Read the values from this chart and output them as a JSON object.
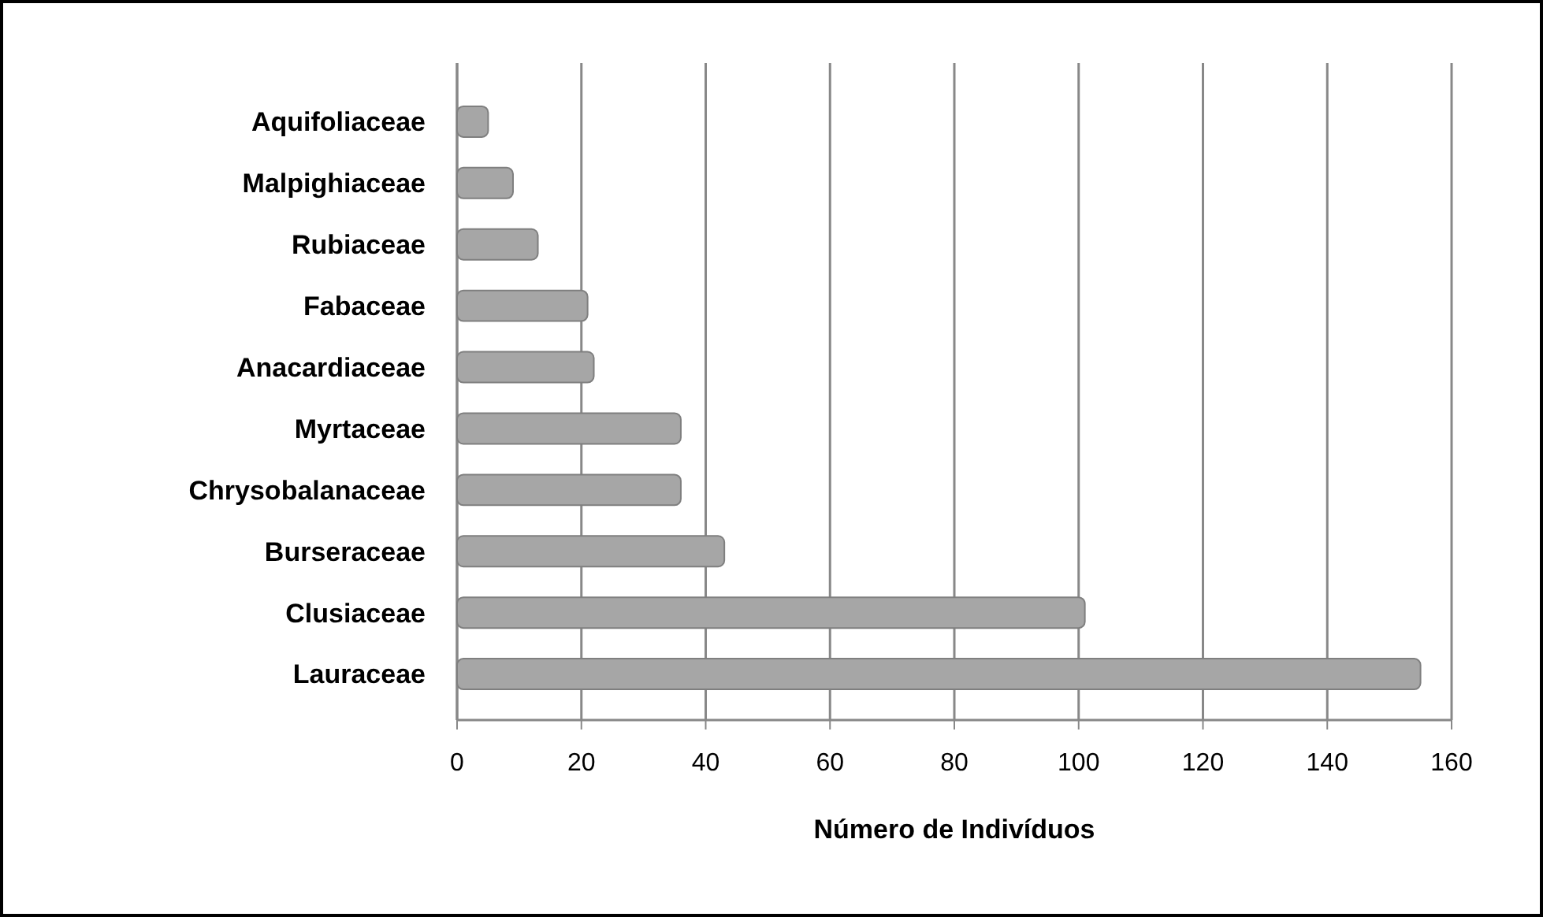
{
  "chart_data": {
    "type": "bar",
    "orientation": "horizontal",
    "xlabel": "Número de Indivíduos",
    "categories": [
      "Aquifoliaceae",
      "Malpighiaceae",
      "Rubiaceae",
      "Fabaceae",
      "Anacardiaceae",
      "Myrtaceae",
      "Chrysobalanaceae",
      "Burseraceae",
      "Clusiaceae",
      "Lauraceae"
    ],
    "values": [
      5,
      9,
      13,
      21,
      22,
      36,
      36,
      43,
      101,
      155
    ],
    "color": "#a6a6a6",
    "xlim": [
      0,
      160
    ],
    "xticks": [
      0,
      20,
      40,
      60,
      80,
      100,
      120,
      140,
      160
    ],
    "grid": "x"
  }
}
